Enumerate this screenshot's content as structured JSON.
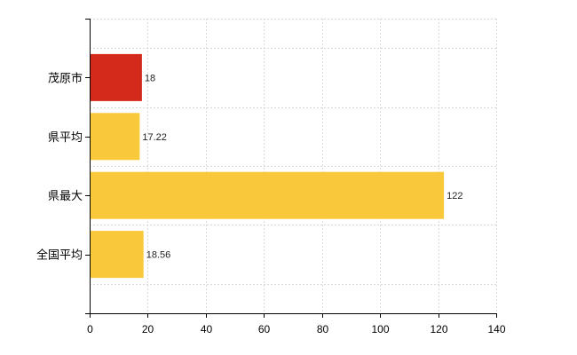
{
  "chart_data": {
    "type": "bar",
    "orientation": "horizontal",
    "categories": [
      "茂原市",
      "県平均",
      "県最大",
      "全国平均"
    ],
    "values": [
      18,
      17.22,
      122,
      18.56
    ],
    "value_labels": [
      "18",
      "17.22",
      "122",
      "18.56"
    ],
    "bar_colors": [
      "#d42a1c",
      "#f9c93b",
      "#f9c93b",
      "#f9c93b"
    ],
    "title": "",
    "xlabel": "",
    "ylabel": "",
    "xlim": [
      0,
      140
    ],
    "x_ticks": [
      0,
      20,
      40,
      60,
      80,
      100,
      120,
      140
    ],
    "x_tick_labels": [
      "0",
      "20",
      "40",
      "60",
      "80",
      "100",
      "120",
      "140"
    ],
    "grid": true,
    "legend": "none",
    "colors": {
      "highlight": "#d42a1c",
      "default": "#f9c93b",
      "grid": "#d8d8d8",
      "axis": "#000000"
    }
  }
}
